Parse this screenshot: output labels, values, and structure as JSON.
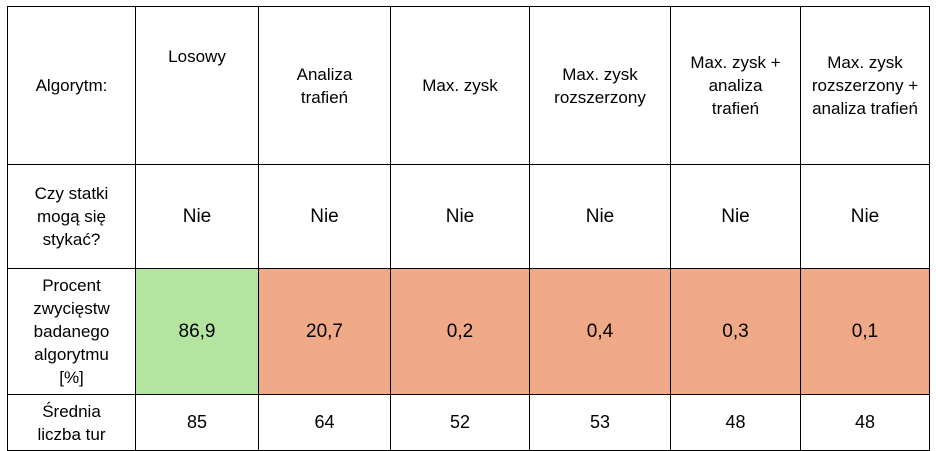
{
  "table": {
    "header_label": "Algorytm:",
    "algorithms": [
      "Losowy",
      "Analiza trafień",
      "Max. zysk",
      "Max. zysk rozszerzony",
      "Max. zysk + analiza trafień",
      "Max. zysk rozszerzony + analiza trafień"
    ],
    "rows": [
      {
        "label": "Czy statki mogą się stykać?",
        "values": [
          "Nie",
          "Nie",
          "Nie",
          "Nie",
          "Nie",
          "Nie"
        ]
      },
      {
        "label": "Procent zwycięstw badanego algorytmu [%]",
        "values": [
          "86,9",
          "20,7",
          "0,2",
          "0,4",
          "0,3",
          "0,1"
        ]
      },
      {
        "label": "Średnia liczba tur",
        "values": [
          "85",
          "64",
          "52",
          "53",
          "48",
          "48"
        ]
      }
    ]
  },
  "colors": {
    "best_highlight": "#b3e5a0",
    "other_highlight": "#f0a987",
    "border": "#000000"
  }
}
